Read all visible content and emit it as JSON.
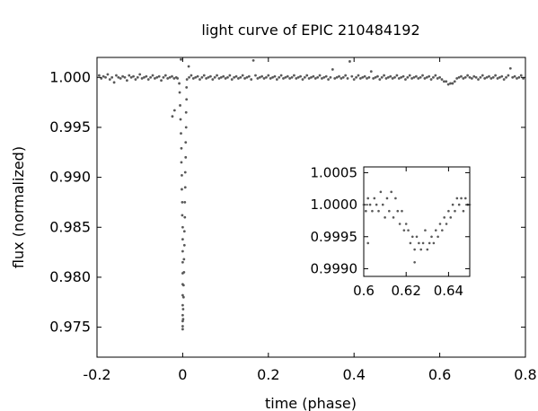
{
  "chart_data": {
    "type": "scatter",
    "title": "light curve of EPIC 210484192",
    "xlabel": "time (phase)",
    "ylabel": "flux (normalized)",
    "xlim": [
      -0.2,
      0.8
    ],
    "ylim": [
      0.972,
      1.002
    ],
    "xticks": [
      -0.2,
      0,
      0.2,
      0.4,
      0.6,
      0.8
    ],
    "xtick_labels": [
      "-0.2",
      "0",
      "0.2",
      "0.4",
      "0.6",
      "0.8"
    ],
    "yticks": [
      1.0,
      0.995,
      0.99,
      0.985,
      0.98,
      0.975
    ],
    "ytick_labels": [
      "1.000",
      "0.995",
      "0.990",
      "0.985",
      "0.980",
      "0.975"
    ],
    "grid": false,
    "legend": "none",
    "marker_color": "#595959",
    "series": [
      {
        "points": [
          [
            -0.195,
            1.0002
          ],
          [
            -0.19,
            0.9999
          ],
          [
            -0.185,
            1.0001
          ],
          [
            -0.18,
            1.0
          ],
          [
            -0.175,
            1.0003
          ],
          [
            -0.17,
            0.9998
          ],
          [
            -0.165,
            1.0
          ],
          [
            -0.16,
            0.9995
          ],
          [
            -0.155,
            1.0002
          ],
          [
            -0.15,
            1.0
          ],
          [
            -0.145,
            0.9999
          ],
          [
            -0.14,
            1.0001
          ],
          [
            -0.135,
            1.0
          ],
          [
            -0.13,
            0.9997
          ],
          [
            -0.125,
            1.0002
          ],
          [
            -0.12,
            1.0
          ],
          [
            -0.115,
            1.0001
          ],
          [
            -0.11,
            0.9998
          ],
          [
            -0.105,
            1.0
          ],
          [
            -0.1,
            1.0003
          ],
          [
            -0.095,
            0.9999
          ],
          [
            -0.09,
            1.0
          ],
          [
            -0.085,
            1.0001
          ],
          [
            -0.08,
            0.9998
          ],
          [
            -0.075,
            1.0
          ],
          [
            -0.07,
            1.0002
          ],
          [
            -0.065,
            0.9999
          ],
          [
            -0.06,
            1.0
          ],
          [
            -0.055,
            1.0001
          ],
          [
            -0.05,
            0.9997
          ],
          [
            -0.045,
            1.0
          ],
          [
            -0.04,
            1.0002
          ],
          [
            -0.035,
            0.9999
          ],
          [
            -0.03,
            1.0
          ],
          [
            -0.025,
            1.0001
          ],
          [
            -0.02,
            0.9999
          ],
          [
            -0.015,
            1.0
          ],
          [
            -0.012,
            0.9999
          ],
          [
            -0.024,
            0.9961
          ],
          [
            -0.019,
            0.9967
          ],
          [
            0.014,
            1.0011
          ],
          [
            -0.004,
            1.0018
          ],
          [
            -0.008,
            0.9994
          ],
          [
            -0.007,
            0.9985
          ],
          [
            -0.006,
            0.9972
          ],
          [
            -0.005,
            0.9958
          ],
          [
            -0.004,
            0.9944
          ],
          [
            -0.003,
            0.9929
          ],
          [
            -0.003,
            0.9915
          ],
          [
            -0.002,
            0.9902
          ],
          [
            -0.002,
            0.9888
          ],
          [
            -0.001,
            0.9875
          ],
          [
            -0.001,
            0.9862
          ],
          [
            0.0,
            0.985
          ],
          [
            0.0,
            0.9838
          ],
          [
            0.0,
            0.9826
          ],
          [
            0.0,
            0.9815
          ],
          [
            0.0,
            0.9804
          ],
          [
            0.0,
            0.9793
          ],
          [
            0.0,
            0.9782
          ],
          [
            0.0,
            0.9772
          ],
          [
            0.0,
            0.9762
          ],
          [
            0.0,
            0.9756
          ],
          [
            0.0,
            0.9751
          ],
          [
            0.0,
            0.9748
          ],
          [
            0.001,
            0.9758
          ],
          [
            0.001,
            0.9768
          ],
          [
            0.002,
            0.978
          ],
          [
            0.002,
            0.9792
          ],
          [
            0.003,
            0.9805
          ],
          [
            0.003,
            0.9818
          ],
          [
            0.004,
            0.9832
          ],
          [
            0.004,
            0.9846
          ],
          [
            0.005,
            0.986
          ],
          [
            0.005,
            0.9875
          ],
          [
            0.006,
            0.989
          ],
          [
            0.006,
            0.9905
          ],
          [
            0.007,
            0.992
          ],
          [
            0.007,
            0.9935
          ],
          [
            0.008,
            0.995
          ],
          [
            0.008,
            0.9965
          ],
          [
            0.009,
            0.9978
          ],
          [
            0.009,
            0.999
          ],
          [
            0.01,
            0.9998
          ],
          [
            0.015,
            1.0
          ],
          [
            0.02,
            1.0002
          ],
          [
            0.025,
            0.9999
          ],
          [
            0.03,
            1.0
          ],
          [
            0.035,
            1.0001
          ],
          [
            0.04,
            0.9998
          ],
          [
            0.045,
            1.0
          ],
          [
            0.05,
            1.0002
          ],
          [
            0.055,
            0.9999
          ],
          [
            0.06,
            1.0
          ],
          [
            0.065,
            1.0001
          ],
          [
            0.07,
            0.9998
          ],
          [
            0.075,
            1.0
          ],
          [
            0.08,
            1.0002
          ],
          [
            0.085,
            0.9999
          ],
          [
            0.09,
            1.0
          ],
          [
            0.095,
            1.0001
          ],
          [
            0.1,
            0.9999
          ],
          [
            0.105,
            1.0
          ],
          [
            0.11,
            1.0002
          ],
          [
            0.115,
            0.9998
          ],
          [
            0.12,
            1.0
          ],
          [
            0.125,
            1.0001
          ],
          [
            0.13,
            0.9999
          ],
          [
            0.135,
            1.0
          ],
          [
            0.14,
            1.0002
          ],
          [
            0.145,
            0.9999
          ],
          [
            0.15,
            1.0
          ],
          [
            0.155,
            1.0001
          ],
          [
            0.16,
            0.9998
          ],
          [
            0.165,
            1.0017
          ],
          [
            0.17,
            1.0002
          ],
          [
            0.175,
            0.9999
          ],
          [
            0.18,
            1.0
          ],
          [
            0.185,
            1.0001
          ],
          [
            0.19,
            0.9999
          ],
          [
            0.195,
            1.0
          ],
          [
            0.2,
            1.0002
          ],
          [
            0.205,
            0.9999
          ],
          [
            0.21,
            1.0
          ],
          [
            0.215,
            1.0001
          ],
          [
            0.22,
            0.9998
          ],
          [
            0.225,
            1.0
          ],
          [
            0.23,
            1.0002
          ],
          [
            0.235,
            0.9999
          ],
          [
            0.24,
            1.0
          ],
          [
            0.245,
            1.0001
          ],
          [
            0.25,
            0.9999
          ],
          [
            0.255,
            1.0
          ],
          [
            0.26,
            1.0002
          ],
          [
            0.265,
            0.9999
          ],
          [
            0.27,
            1.0
          ],
          [
            0.275,
            1.0001
          ],
          [
            0.28,
            0.9998
          ],
          [
            0.285,
            1.0
          ],
          [
            0.29,
            1.0002
          ],
          [
            0.295,
            0.9999
          ],
          [
            0.3,
            1.0
          ],
          [
            0.305,
            1.0001
          ],
          [
            0.31,
            0.9999
          ],
          [
            0.315,
            1.0
          ],
          [
            0.32,
            1.0002
          ],
          [
            0.325,
            0.9999
          ],
          [
            0.33,
            1.0
          ],
          [
            0.335,
            1.0001
          ],
          [
            0.34,
            0.9998
          ],
          [
            0.345,
            1.0
          ],
          [
            0.35,
            1.0008
          ],
          [
            0.355,
            0.9999
          ],
          [
            0.36,
            1.0
          ],
          [
            0.365,
            1.0001
          ],
          [
            0.37,
            0.9999
          ],
          [
            0.375,
            1.0
          ],
          [
            0.38,
            1.0002
          ],
          [
            0.385,
            0.9999
          ],
          [
            0.39,
            1.0016
          ],
          [
            0.395,
            1.0001
          ],
          [
            0.4,
            0.9998
          ],
          [
            0.405,
            1.0
          ],
          [
            0.41,
            1.0002
          ],
          [
            0.415,
            0.9999
          ],
          [
            0.42,
            1.0
          ],
          [
            0.425,
            1.0001
          ],
          [
            0.43,
            0.9999
          ],
          [
            0.435,
            1.0
          ],
          [
            0.44,
            1.0006
          ],
          [
            0.445,
            0.9999
          ],
          [
            0.45,
            1.0
          ],
          [
            0.455,
            1.0001
          ],
          [
            0.46,
            0.9998
          ],
          [
            0.465,
            1.0
          ],
          [
            0.47,
            1.0002
          ],
          [
            0.475,
            0.9999
          ],
          [
            0.48,
            1.0
          ],
          [
            0.485,
            1.0001
          ],
          [
            0.49,
            0.9999
          ],
          [
            0.495,
            1.0
          ],
          [
            0.5,
            1.0002
          ],
          [
            0.505,
            0.9999
          ],
          [
            0.51,
            1.0
          ],
          [
            0.515,
            1.0001
          ],
          [
            0.52,
            0.9998
          ],
          [
            0.525,
            1.0
          ],
          [
            0.53,
            1.0002
          ],
          [
            0.535,
            0.9999
          ],
          [
            0.54,
            1.0
          ],
          [
            0.545,
            1.0001
          ],
          [
            0.55,
            0.9999
          ],
          [
            0.555,
            1.0
          ],
          [
            0.56,
            1.0002
          ],
          [
            0.565,
            0.9999
          ],
          [
            0.57,
            1.0
          ],
          [
            0.575,
            1.0001
          ],
          [
            0.58,
            0.9998
          ],
          [
            0.585,
            1.0
          ],
          [
            0.59,
            1.0002
          ],
          [
            0.595,
            0.9999
          ],
          [
            0.6,
            1.0
          ],
          [
            0.605,
            0.9998
          ],
          [
            0.61,
            0.9996
          ],
          [
            0.615,
            0.9996
          ],
          [
            0.62,
            0.9993
          ],
          [
            0.625,
            0.9994
          ],
          [
            0.63,
            0.9994
          ],
          [
            0.635,
            0.9996
          ],
          [
            0.64,
            0.9999
          ],
          [
            0.645,
            1.0
          ],
          [
            0.65,
            1.0001
          ],
          [
            0.655,
            0.9999
          ],
          [
            0.66,
            1.0
          ],
          [
            0.665,
            1.0002
          ],
          [
            0.67,
            1.0
          ],
          [
            0.675,
            0.9999
          ],
          [
            0.68,
            1.0001
          ],
          [
            0.685,
            1.0
          ],
          [
            0.69,
            0.9998
          ],
          [
            0.695,
            1.0
          ],
          [
            0.7,
            1.0002
          ],
          [
            0.705,
            0.9999
          ],
          [
            0.71,
            1.0
          ],
          [
            0.715,
            1.0001
          ],
          [
            0.72,
            0.9999
          ],
          [
            0.725,
            1.0
          ],
          [
            0.73,
            1.0002
          ],
          [
            0.735,
            0.9999
          ],
          [
            0.74,
            1.0
          ],
          [
            0.745,
            1.0001
          ],
          [
            0.75,
            0.9998
          ],
          [
            0.755,
            1.0
          ],
          [
            0.76,
            1.0002
          ],
          [
            0.765,
            1.0009
          ],
          [
            0.77,
            1.0
          ],
          [
            0.775,
            1.0001
          ],
          [
            0.78,
            0.9999
          ],
          [
            0.785,
            1.0
          ],
          [
            0.79,
            1.0002
          ],
          [
            0.795,
            0.9999
          ]
        ]
      }
    ],
    "inset": {
      "type": "scatter",
      "xlim": [
        0.6,
        0.65
      ],
      "ylim": [
        0.99888,
        1.00059
      ],
      "xticks": [
        0.6,
        0.62,
        0.64
      ],
      "xtick_labels": [
        "0.6",
        "0.62",
        "0.64"
      ],
      "yticks": [
        1.0005,
        1.0,
        0.9995,
        0.999
      ],
      "ytick_labels": [
        "1.0005",
        "1.0000",
        "0.9995",
        "0.9990"
      ],
      "points": [
        [
          0.6,
          1.0
        ],
        [
          0.601,
          0.9999
        ],
        [
          0.602,
          1.0001
        ],
        [
          0.602,
          0.9994
        ],
        [
          0.603,
          1.0
        ],
        [
          0.604,
          0.9999
        ],
        [
          0.605,
          1.0001
        ],
        [
          0.606,
          1.0
        ],
        [
          0.607,
          0.9999
        ],
        [
          0.608,
          1.0002
        ],
        [
          0.609,
          1.0
        ],
        [
          0.61,
          0.9998
        ],
        [
          0.611,
          1.0001
        ],
        [
          0.612,
          0.9999
        ],
        [
          0.613,
          1.0002
        ],
        [
          0.614,
          0.9998
        ],
        [
          0.615,
          1.0001
        ],
        [
          0.616,
          0.9999
        ],
        [
          0.617,
          0.9997
        ],
        [
          0.618,
          0.9999
        ],
        [
          0.619,
          0.9996
        ],
        [
          0.62,
          0.9997
        ],
        [
          0.621,
          0.9996
        ],
        [
          0.622,
          0.9994
        ],
        [
          0.623,
          0.9995
        ],
        [
          0.624,
          0.9993
        ],
        [
          0.624,
          0.9991
        ],
        [
          0.625,
          0.9995
        ],
        [
          0.626,
          0.9994
        ],
        [
          0.627,
          0.9993
        ],
        [
          0.628,
          0.9994
        ],
        [
          0.629,
          0.9996
        ],
        [
          0.63,
          0.9993
        ],
        [
          0.631,
          0.9994
        ],
        [
          0.632,
          0.9995
        ],
        [
          0.633,
          0.9994
        ],
        [
          0.634,
          0.9996
        ],
        [
          0.635,
          0.9995
        ],
        [
          0.636,
          0.9997
        ],
        [
          0.637,
          0.9996
        ],
        [
          0.638,
          0.9998
        ],
        [
          0.639,
          0.9997
        ],
        [
          0.64,
          0.9999
        ],
        [
          0.641,
          0.9998
        ],
        [
          0.642,
          1.0
        ],
        [
          0.643,
          0.9999
        ],
        [
          0.644,
          1.0001
        ],
        [
          0.645,
          1.0
        ],
        [
          0.646,
          1.0001
        ],
        [
          0.647,
          0.9999
        ],
        [
          0.648,
          1.0001
        ],
        [
          0.649,
          1.0
        ],
        [
          0.65,
          1.0
        ]
      ]
    }
  }
}
